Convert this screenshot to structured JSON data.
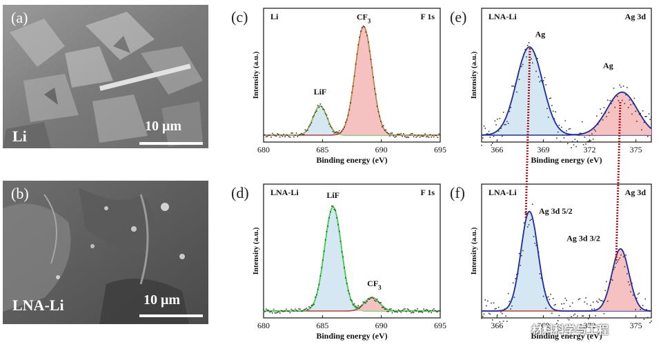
{
  "panels": {
    "a": {
      "label": "(a)",
      "caption": "Li",
      "scale": "10 μm"
    },
    "b": {
      "label": "(b)",
      "caption": "LNA-Li",
      "scale": "10 μm"
    },
    "c": {
      "label": "(c)"
    },
    "d": {
      "label": "(d)"
    },
    "e": {
      "label": "(e)"
    },
    "f": {
      "label": "(f)"
    }
  },
  "watermark": "材料科学与工程",
  "colors": {
    "green_fit": "#3fd14a",
    "blue_fit": "#1f2fa8",
    "red_fit": "#c23a3a",
    "pink_fill": "#f4b6b6",
    "blue_fill": "#cfe3f2",
    "envelope": "#b8963a",
    "guide_line": "#b0121a"
  },
  "chart_data": [
    {
      "id": "c",
      "type": "line",
      "title": "Li",
      "region": "F 1s",
      "xlabel": "Binding energy (eV)",
      "ylabel": "Intensity (a.u.)",
      "xlim": [
        680,
        695
      ],
      "ylim": [
        0,
        1.0
      ],
      "xticks": [
        680,
        685,
        690,
        695
      ],
      "peaks": [
        {
          "name": "LiF",
          "center": 684.8,
          "height": 0.26,
          "fwhm": 1.4,
          "color": "green",
          "fill": "blue"
        },
        {
          "name": "CF3",
          "center": 688.5,
          "height": 0.96,
          "fwhm": 1.7,
          "color": "red",
          "fill": "pink"
        }
      ],
      "peak_labels": [
        {
          "text": "LiF",
          "x": 684.8,
          "y": 0.36
        },
        {
          "text": "CF",
          "sub": "3",
          "x": 688.5,
          "y": 1.02
        }
      ]
    },
    {
      "id": "d",
      "type": "line",
      "title": "LNA-Li",
      "region": "F 1s",
      "xlabel": "Binding energy (eV)",
      "ylabel": "Intensity (a.u.)",
      "xlim": [
        680,
        695
      ],
      "ylim": [
        0,
        1.0
      ],
      "xticks": [
        680,
        685,
        690,
        695
      ],
      "peaks": [
        {
          "name": "LiF",
          "center": 685.9,
          "height": 0.92,
          "fwhm": 1.7,
          "color": "green",
          "fill": "blue"
        },
        {
          "name": "CF3",
          "center": 689.2,
          "height": 0.12,
          "fwhm": 1.5,
          "color": "red",
          "fill": "pink"
        }
      ],
      "peak_labels": [
        {
          "text": "LiF",
          "x": 685.9,
          "y": 1.0
        },
        {
          "text": "CF",
          "sub": "3",
          "x": 689.4,
          "y": 0.22
        }
      ]
    },
    {
      "id": "e",
      "type": "line",
      "title": "LNA-Li",
      "region": "Ag 3d",
      "xlabel": "Binding energy (eV)",
      "ylabel": "Intensity (a.u.)",
      "xlim": [
        365,
        376
      ],
      "ylim": [
        0,
        1.0
      ],
      "xticks": [
        366,
        369,
        372,
        375
      ],
      "peaks": [
        {
          "name": "Ag",
          "center": 368.1,
          "height": 0.78,
          "fwhm": 2.0,
          "color": "blue",
          "fill": "blue"
        },
        {
          "name": "Ag",
          "center": 374.1,
          "height": 0.38,
          "fwhm": 2.3,
          "color": "blue",
          "fill": "pink"
        }
      ],
      "peak_labels": [
        {
          "text": "Ag",
          "x": 368.8,
          "y": 0.87
        },
        {
          "text": "Ag",
          "x": 373.2,
          "y": 0.59
        }
      ]
    },
    {
      "id": "f",
      "type": "line",
      "title": "LNA-Li",
      "region": "Ag 3d",
      "xlabel": "Binding energy (eV)",
      "ylabel": "Intensity (a.u.)",
      "xlim": [
        365,
        376
      ],
      "ylim": [
        0,
        1.0
      ],
      "xticks": [
        366,
        369,
        372,
        375
      ],
      "peaks": [
        {
          "name": "Ag 3d 5/2",
          "center": 368.1,
          "height": 0.88,
          "fwhm": 1.3,
          "color": "blue",
          "fill": "blue"
        },
        {
          "name": "Ag 3d 3/2",
          "center": 374.0,
          "height": 0.55,
          "fwhm": 1.3,
          "color": "red",
          "fill": "pink"
        }
      ],
      "peak_labels": [
        {
          "text": "Ag 3d 5/2",
          "x": 369.8,
          "y": 0.86
        },
        {
          "text": "Ag 3d 3/2",
          "x": 371.6,
          "y": 0.62
        }
      ]
    }
  ]
}
